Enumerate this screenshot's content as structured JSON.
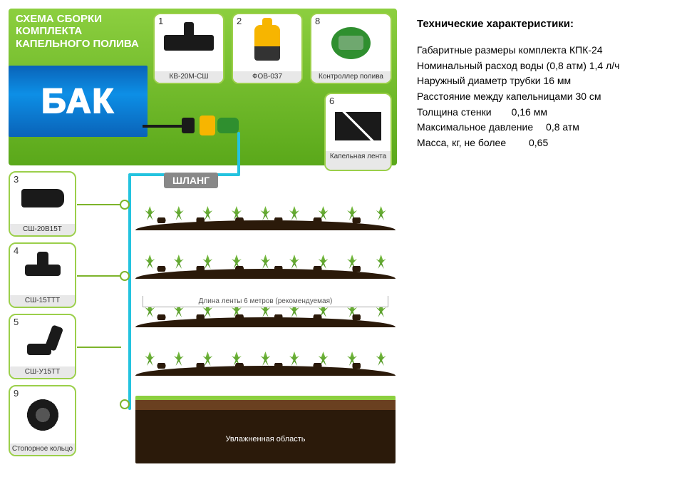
{
  "diagram": {
    "title": "СХЕМА СБОРКИ КОМПЛЕКТА КАПЕЛЬНОГО ПОЛИВА",
    "tank_label": "БАК",
    "hose_label": "ШЛАНГ",
    "tape_length_note": "Длина ленты 6 метров (рекомендуемая)",
    "moist_zone_label": "Увлажненная область",
    "colors": {
      "header_green_top": "#8ccf3f",
      "header_green_bottom": "#5aa81a",
      "card_border": "#9bcf4a",
      "tank_blue": "#0a63b8",
      "hose_blue": "#24c3df",
      "soil_dark": "#2b1a0a",
      "callout_green": "#7db42b"
    },
    "top_cards": [
      {
        "num": "1",
        "caption": "КВ-20М-СШ",
        "shape": "valve"
      },
      {
        "num": "2",
        "caption": "ФОВ-037",
        "shape": "filter"
      },
      {
        "num": "8",
        "caption": "Контроллер полива",
        "shape": "ctrl"
      }
    ],
    "right_card": {
      "num": "6",
      "caption": "Капельная лента",
      "shape": "tape"
    },
    "left_cards": [
      {
        "num": "3",
        "caption": "СШ-20В15Т",
        "shape": "cw"
      },
      {
        "num": "4",
        "caption": "СШ-15ТТТ",
        "shape": "tee"
      },
      {
        "num": "5",
        "caption": "СШ-У15ТТ",
        "shape": "elbow"
      },
      {
        "num": "9",
        "caption": "Стопорное кольцо",
        "shape": "ring"
      }
    ],
    "plant_rows": 4,
    "plants_per_row": 9
  },
  "spec": {
    "heading": "Технические характеристики:",
    "lines": [
      "Габаритные размеры комплекта КПК-24",
      "Номинальный расход воды (0,8 атм) 1,4 л/ч",
      "Наружный диаметр трубки 16 мм",
      "Расстояние между капельницами 30 см",
      "Толщина стенки  0,16 мм",
      "Максимальное давление  0,8 атм",
      "Масса, кг, не более   0,65"
    ]
  }
}
